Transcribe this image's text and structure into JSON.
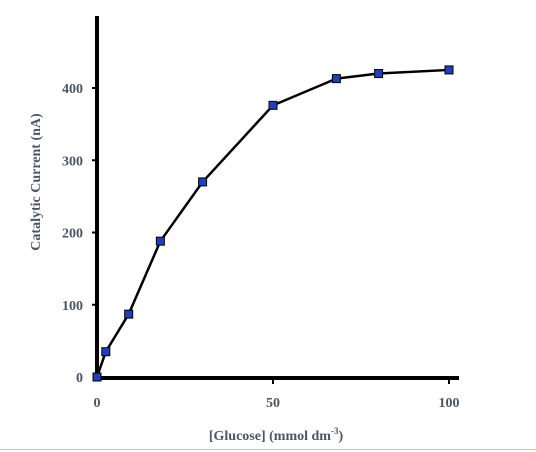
{
  "chart_data": {
    "type": "line",
    "title": "",
    "xlabel": "[Glucose] (mmol dm",
    "xlabel_superscript": "-3",
    "xlabel_suffix": ")",
    "ylabel": "Catalytic Current  (nA)",
    "xlim": [
      0,
      100
    ],
    "ylim": [
      0,
      420
    ],
    "x_ticks": [
      0,
      50,
      100
    ],
    "y_ticks": [
      0,
      100,
      200,
      300,
      400
    ],
    "series": [
      {
        "x": [
          0,
          2.5,
          9,
          18,
          30,
          50,
          68,
          80,
          100
        ],
        "y": [
          0,
          35,
          87,
          188,
          270,
          376,
          413,
          420,
          425
        ],
        "line_color": "#000000",
        "marker": "square",
        "marker_color": "#1f3fbf"
      }
    ],
    "grid": false,
    "legend": "none"
  }
}
